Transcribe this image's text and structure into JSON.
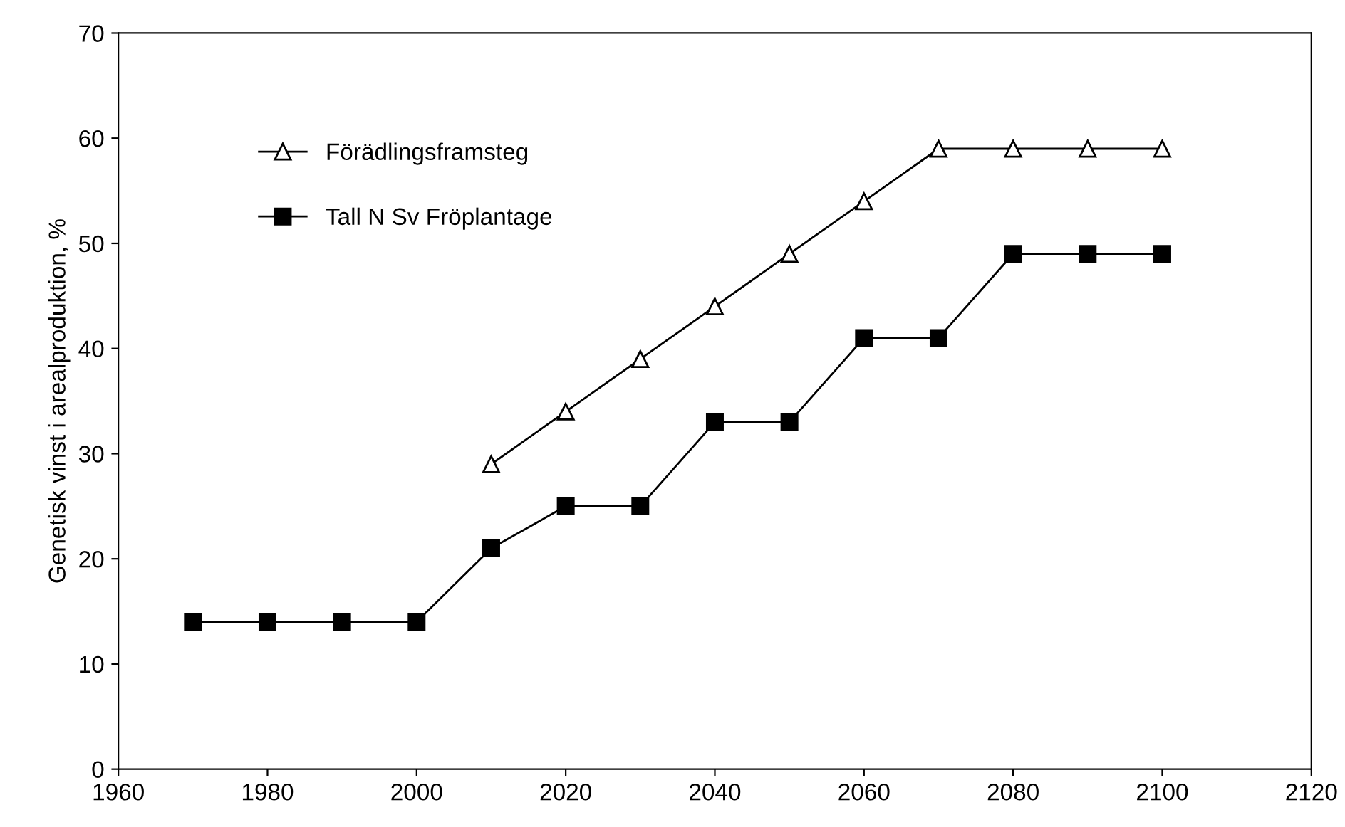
{
  "chart_data": {
    "type": "line",
    "ylabel": "Genetisk vinst i arealproduktion, %",
    "xlim": [
      1960,
      2120
    ],
    "xticks": [
      1960,
      1980,
      2000,
      2020,
      2040,
      2060,
      2080,
      2100,
      2120
    ],
    "ylim": [
      0,
      70
    ],
    "yticks": [
      0,
      10,
      20,
      30,
      40,
      50,
      60,
      70
    ],
    "grid": false,
    "legend": "top left",
    "series": [
      {
        "name": "Förädlingsframsteg",
        "color": "#000000",
        "marker": "triangle",
        "x": [
          2010,
          2020,
          2030,
          2040,
          2050,
          2060,
          2070,
          2080,
          2090,
          2100
        ],
        "values": [
          29,
          34,
          39,
          44,
          49,
          54,
          59,
          59,
          59,
          59
        ]
      },
      {
        "name": "Tall N Sv Fröplantage",
        "color": "#000000",
        "marker": "square",
        "x": [
          1970,
          1980,
          1990,
          2000,
          2010,
          2020,
          2030,
          2040,
          2050,
          2060,
          2070,
          2080,
          2090,
          2100
        ],
        "values": [
          14,
          14,
          14,
          14,
          21,
          25,
          25,
          33,
          33,
          41,
          41,
          49,
          49,
          49
        ]
      }
    ]
  }
}
